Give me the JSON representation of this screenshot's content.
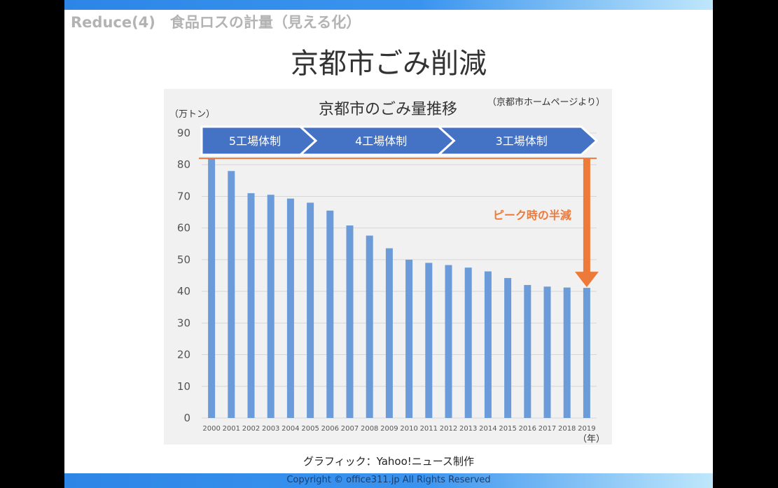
{
  "header": {
    "section_title": "Reduce(4)　食品ロスの計量（見える化）",
    "slide_title": "京都市ごみ削減"
  },
  "footer": {
    "caption": "グラフィック：Yahoo!ニュース制作",
    "copyright": "Copyright © office311.jp All Rights Reserved"
  },
  "colors": {
    "bar": "#6b9bd8",
    "phase": "#4472c4",
    "accent": "#ee7a3a",
    "top_bar": "#3a94ef"
  },
  "chart_data": {
    "type": "bar",
    "title": "京都市のごみ量推移",
    "source": "（京都市ホームページより）",
    "ylabel": "（万トン）",
    "xlabel": "（年）",
    "ylim": [
      0,
      90
    ],
    "yticks": [
      0,
      10,
      20,
      30,
      40,
      50,
      60,
      70,
      80,
      90
    ],
    "grid": true,
    "categories": [
      "2000",
      "2001",
      "2002",
      "2003",
      "2004",
      "2005",
      "2006",
      "2007",
      "2008",
      "2009",
      "2010",
      "2011",
      "2012",
      "2013",
      "2014",
      "2015",
      "2016",
      "2017",
      "2018",
      "2019"
    ],
    "values": [
      82,
      78,
      71,
      70.5,
      69.3,
      68,
      65.5,
      60.8,
      57.6,
      53.6,
      50,
      49,
      48.3,
      47.5,
      46.3,
      44.2,
      42,
      41.5,
      41.2,
      41.1
    ],
    "phases": [
      {
        "label": "5工場体制",
        "from": "2000",
        "to": "2004"
      },
      {
        "label": "4工場体制",
        "from": "2005",
        "to": "2011"
      },
      {
        "label": "3工場体制",
        "from": "2012",
        "to": "2019"
      }
    ],
    "annotation": {
      "text": "ピーク時の半減",
      "peak_value": 82,
      "target_value": 41.1
    }
  }
}
